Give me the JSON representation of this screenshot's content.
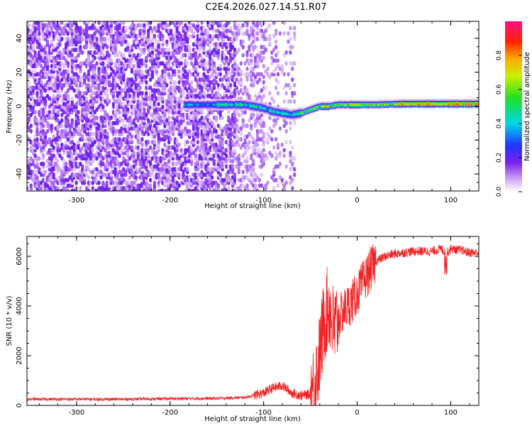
{
  "chart_data": [
    {
      "type": "heatmap",
      "title": "C2E4.2026.027.14.51.R07",
      "xlabel": "Height of straight line (km)",
      "ylabel": "Frequency (Hz)",
      "xlim": [
        -353,
        130
      ],
      "ylim": [
        -50,
        50
      ],
      "xticks": [
        -300,
        -200,
        -100,
        0,
        100
      ],
      "xtick_labels": [
        "-300",
        "-200",
        "-100",
        "0",
        "100"
      ],
      "yticks": [
        -40,
        -20,
        0,
        20,
        40
      ],
      "ytick_labels": [
        "-40",
        "-20",
        "0",
        "20",
        "40"
      ],
      "colorbar": {
        "label": "Normalized spectral amplitude",
        "range": [
          0,
          1
        ],
        "ticks": [
          0.0,
          0.2,
          0.4,
          0.6,
          0.8
        ],
        "tick_labels": [
          "0.0",
          "0.2",
          "0.4",
          "0.6",
          "0.8"
        ]
      },
      "ridge": {
        "x": [
          -180,
          -150,
          -120,
          -100,
          -90,
          -80,
          -70,
          -60,
          -50,
          -40,
          -30,
          -20,
          -10,
          0,
          20,
          50,
          80,
          100,
          130
        ],
        "freq": [
          1,
          1,
          1,
          -1,
          -3,
          -4,
          -5,
          -4,
          -2,
          0,
          0,
          1,
          1,
          1,
          1,
          1.5,
          1.5,
          1.5,
          1.5
        ]
      },
      "noise_region_km": [
        -353,
        -70
      ]
    },
    {
      "type": "line",
      "xlabel": "Height of straight line (km)",
      "ylabel": "SNR (10 * v/v)",
      "xlim": [
        -353,
        130
      ],
      "ylim": [
        0,
        6800
      ],
      "xticks": [
        -300,
        -200,
        -100,
        0,
        100
      ],
      "xtick_labels": [
        "-300",
        "-200",
        "-100",
        "0",
        "100"
      ],
      "yticks": [
        0,
        2000,
        4000,
        6000
      ],
      "ytick_labels": [
        "0",
        "2000",
        "4000",
        "6000"
      ],
      "series": [
        {
          "name": "SNR",
          "color": "#ee2222",
          "x": [
            -353,
            -300,
            -250,
            -200,
            -150,
            -120,
            -100,
            -90,
            -80,
            -70,
            -60,
            -50,
            -45,
            -40,
            -35,
            -30,
            -25,
            -20,
            -15,
            -10,
            -5,
            0,
            10,
            20,
            30,
            40,
            60,
            80,
            90,
            95,
            100,
            110,
            120,
            130
          ],
          "values": [
            250,
            250,
            250,
            270,
            280,
            320,
            500,
            700,
            800,
            500,
            400,
            450,
            900,
            2000,
            3500,
            4000,
            3000,
            3500,
            3800,
            4000,
            4200,
            4500,
            5200,
            5800,
            6000,
            6100,
            6200,
            6200,
            6300,
            6100,
            6300,
            6250,
            6150,
            6150
          ]
        }
      ]
    }
  ]
}
